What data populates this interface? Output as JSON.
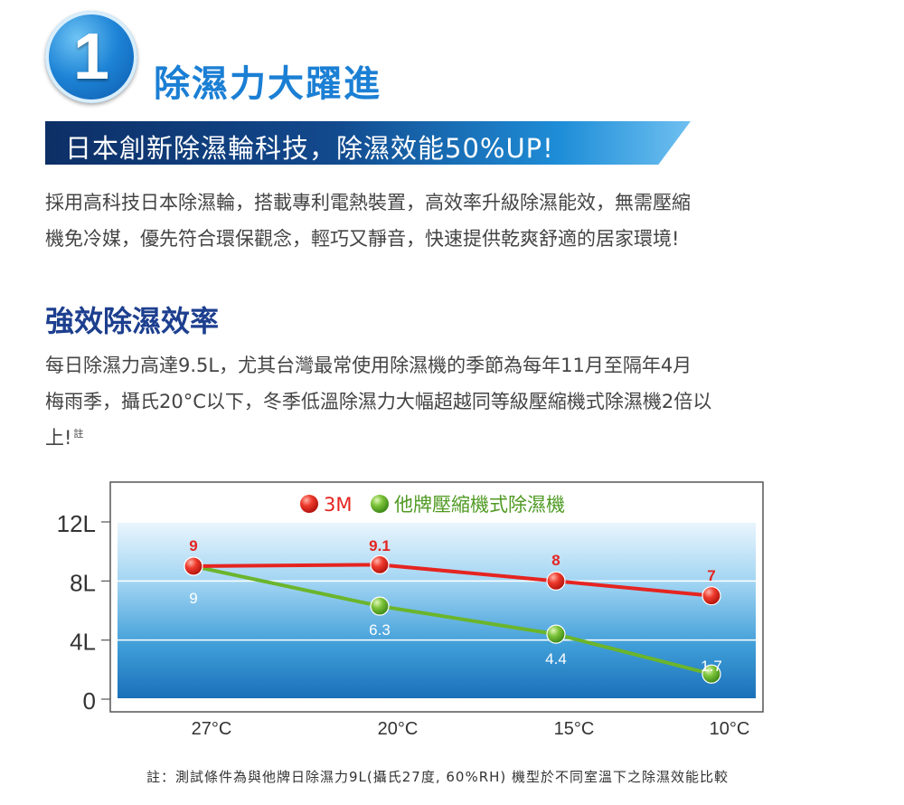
{
  "header": {
    "number": "1",
    "title": "除濕力大躍進",
    "banner": "日本創新除濕輪科技，除濕效能50%UP!"
  },
  "intro": {
    "line1": "採用高科技日本除濕輪，搭載專利電熱裝置，高效率升級除濕能效，無需壓縮",
    "line2": "機免冷媒，優先符合環保觀念，輕巧又靜音，快速提供乾爽舒適的居家環境!"
  },
  "section": {
    "title": "強效除濕效率",
    "line1": "每日除濕力高達9.5L，尤其台灣最常使用除濕機的季節為每年11月至隔年4月",
    "line2": "梅雨季，攝氏20°C以下，冬季低溫除濕力大幅超越同等級壓縮機式除濕機2倍以",
    "line3": "上!",
    "note_mark": "註"
  },
  "chart_data": {
    "type": "line",
    "categories": [
      "27°C",
      "20°C",
      "15°C",
      "10°C"
    ],
    "series": [
      {
        "name": "3M",
        "values": [
          9,
          9.1,
          8,
          7
        ],
        "labels": [
          "9",
          "9.1",
          "8",
          "7"
        ],
        "color": "#e52420"
      },
      {
        "name": "他牌壓縮機式除濕機",
        "values": [
          9,
          6.3,
          4.4,
          1.7
        ],
        "labels": [
          "9",
          "6.3",
          "4.4",
          "1.7"
        ],
        "color": "#6bb52c"
      }
    ],
    "y_ticks": [
      0,
      4,
      8,
      12
    ],
    "y_tick_labels": [
      "0",
      "4L",
      "8L",
      "12L"
    ],
    "ylim": [
      0,
      12
    ],
    "legend_position": "top-center",
    "grid": true
  },
  "footnote": "註：測試條件為與他牌日除濕力9L(攝氏27度, 60%RH) 機型於不同室溫下之除濕效能比較"
}
